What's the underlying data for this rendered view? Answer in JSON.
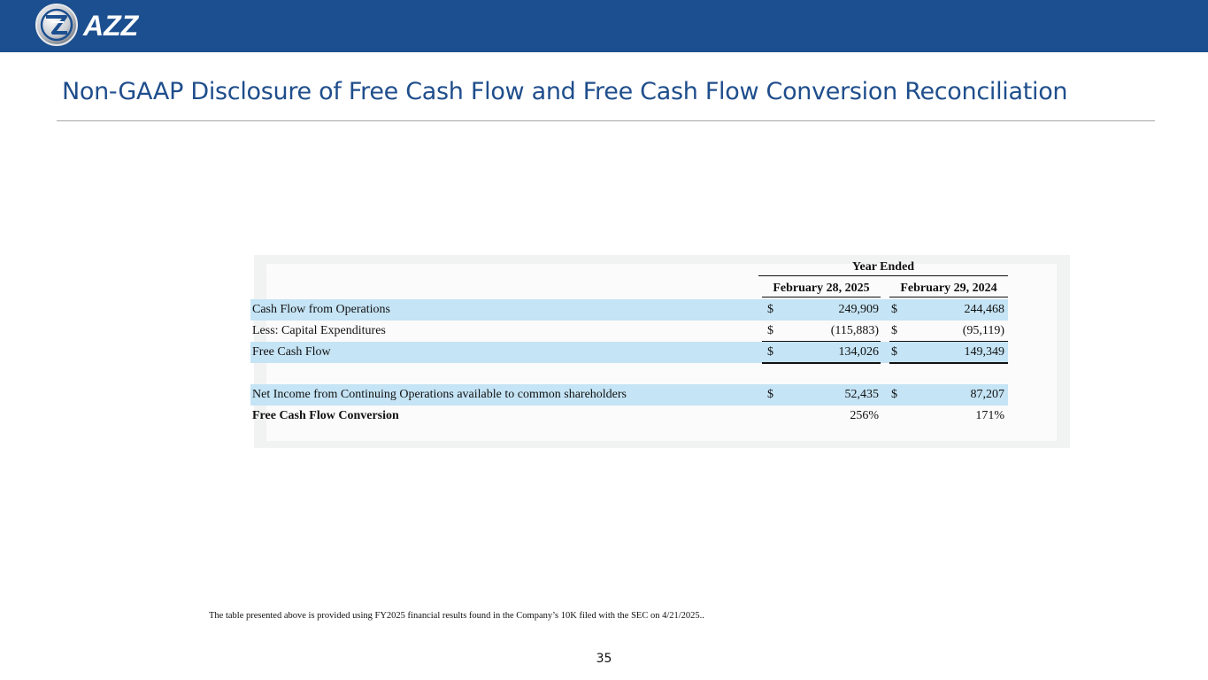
{
  "header": {
    "logo_text": "AZZ",
    "brand_color": "#1c4f8f"
  },
  "title": "Non-GAAP Disclosure of Free Cash Flow and Free Cash Flow Conversion Reconciliation",
  "table": {
    "period_header": "Year Ended",
    "columns": [
      "February 28, 2025",
      "February 29, 2024"
    ],
    "rows": [
      {
        "label": "Cash Flow from Operations",
        "cur1": "$",
        "val1": "249,909",
        "cur2": "$",
        "val2": "244,468",
        "highlight": true,
        "bold": false
      },
      {
        "label": "Less: Capital Expenditures",
        "cur1": "$",
        "val1": "(115,883)",
        "cur2": "$",
        "val2": "(95,119)",
        "highlight": false,
        "bold": false
      },
      {
        "label": "Free Cash Flow",
        "cur1": "$",
        "val1": "134,026",
        "cur2": "$",
        "val2": "149,349",
        "highlight": true,
        "bold": false
      },
      {
        "label": "Net Income from Continuing Operations available to common shareholders",
        "cur1": "$",
        "val1": "52,435",
        "cur2": "$",
        "val2": "87,207",
        "highlight": true,
        "bold": false
      },
      {
        "label": "Free Cash Flow Conversion",
        "cur1": "",
        "val1": "256%",
        "cur2": "",
        "val2": "171%",
        "highlight": false,
        "bold": true
      }
    ],
    "highlight_color": "#c5e4f5"
  },
  "footnote": "The table presented above is provided using FY2025 financial results found in the Company’s 10K filed with the SEC on 4/21/2025..",
  "page_number": "35"
}
